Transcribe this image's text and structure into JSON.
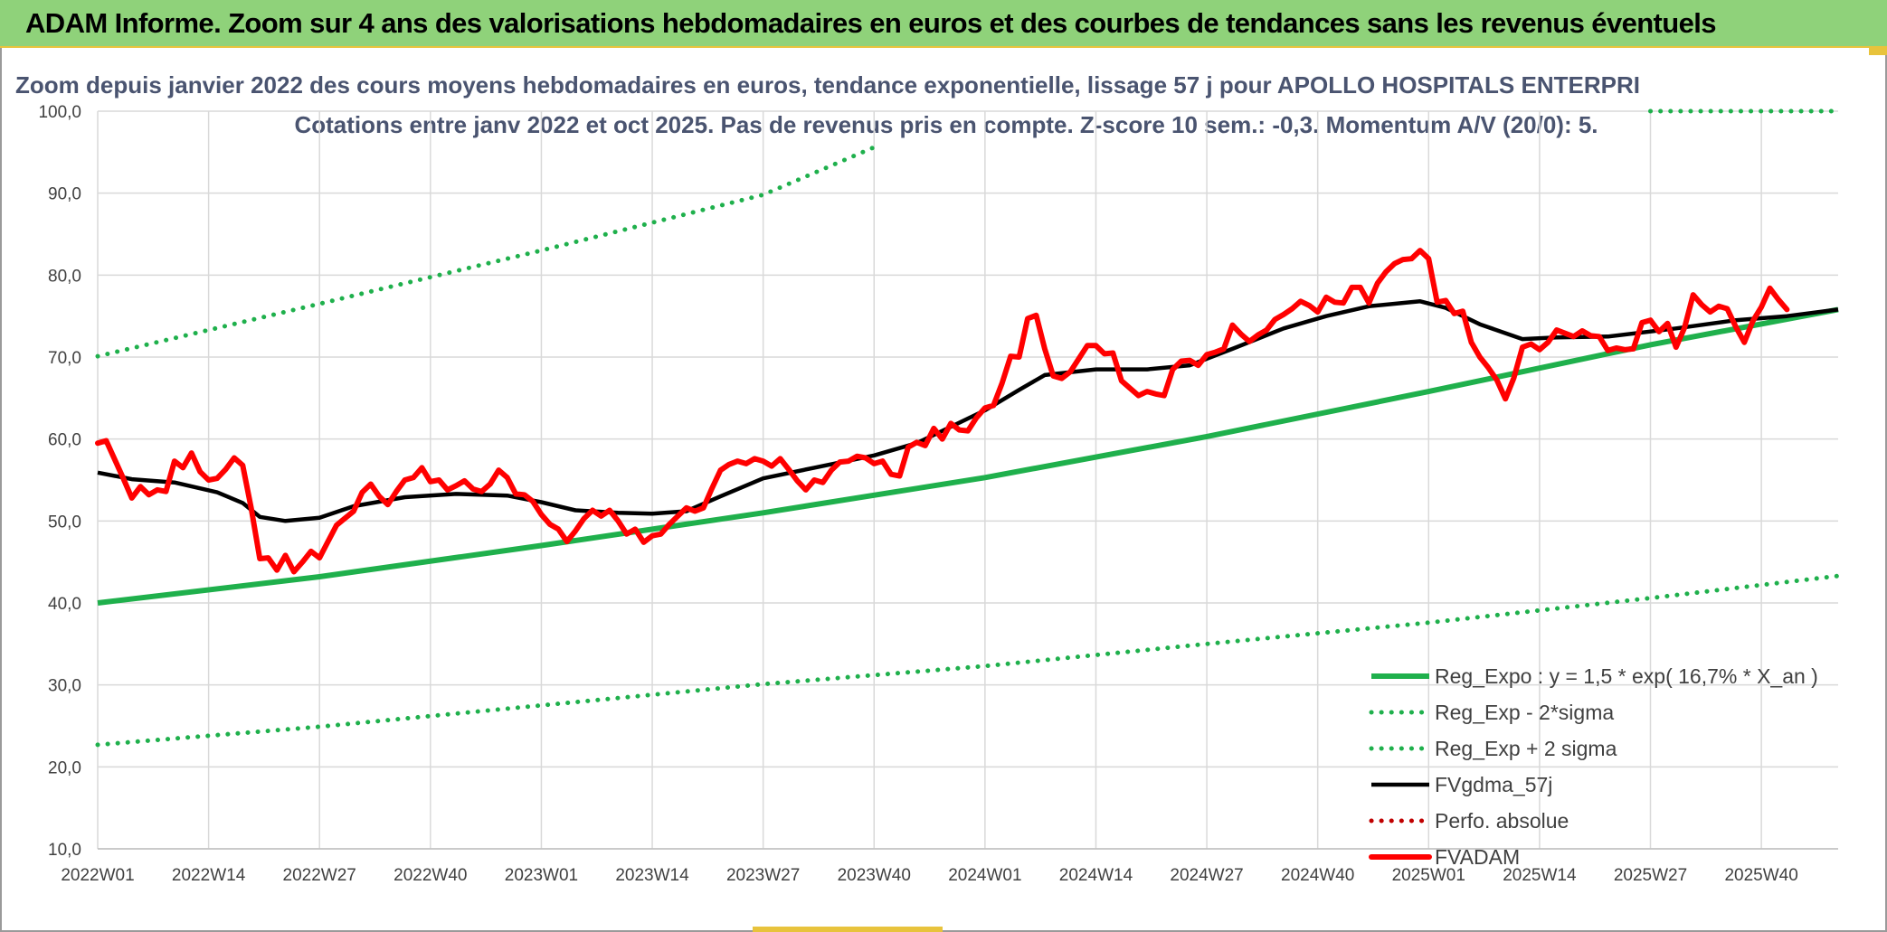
{
  "banner": {
    "title": "ADAM Informe. Zoom sur 4 ans des valorisations hebdomadaires en euros et des courbes de tendances sans les revenus éventuels"
  },
  "colors": {
    "banner_bg": "#8fd27a",
    "accent": "#e8c33c",
    "regression": "#1fb04c",
    "bands": "#1fb04c",
    "smoothed": "#000000",
    "price": "#ff0000",
    "perf": "#c00000",
    "grid": "#d9d9d9",
    "title_text": "#4a5470"
  },
  "chart_data": {
    "type": "line",
    "title": "Zoom depuis janvier 2022 des cours moyens hebdomadaires en euros, tendance exponentielle, lissage 57 j pour APOLLO HOSPITALS ENTERPRI",
    "subtitle": "Cotations entre janv 2022 et oct 2025. Pas de revenus pris en compte. Z-score 10 sem.: -0,3. Momentum A/V (20/0): 5.",
    "xlabel": "",
    "ylabel": "",
    "ylim": [
      10,
      100
    ],
    "yticks": [
      "10,0",
      "20,0",
      "30,0",
      "40,0",
      "50,0",
      "60,0",
      "70,0",
      "80,0",
      "90,0",
      "100,0"
    ],
    "x_start": "2022W01",
    "x_end": "2025W49",
    "xticks": [
      "2022W01",
      "2022W14",
      "2022W27",
      "2022W40",
      "2023W01",
      "2023W14",
      "2023W27",
      "2023W40",
      "2024W01",
      "2024W14",
      "2024W27",
      "2024W40",
      "2025W01",
      "2025W14",
      "2025W27",
      "2025W40"
    ],
    "grid": true,
    "legend_position": "right",
    "series": [
      {
        "name": "Reg_Expo : y = 1,5 * exp( 16,7% *  X_an )",
        "style": "solid",
        "color": "#1fb04c",
        "points": [
          [
            "2022W01",
            40.0
          ],
          [
            "2022W27",
            43.2
          ],
          [
            "2023W01",
            47.0
          ],
          [
            "2023W27",
            51.0
          ],
          [
            "2024W01",
            55.3
          ],
          [
            "2024W27",
            60.3
          ],
          [
            "2025W01",
            65.8
          ],
          [
            "2025W27",
            71.5
          ],
          [
            "2025W49",
            75.8
          ]
        ]
      },
      {
        "name": "Reg_Exp - 2*sigma",
        "style": "dotted",
        "color": "#1fb04c",
        "points": [
          [
            "2022W01",
            22.7
          ],
          [
            "2022W27",
            24.9
          ],
          [
            "2023W01",
            27.5
          ],
          [
            "2023W27",
            30.1
          ],
          [
            "2024W01",
            32.3
          ],
          [
            "2024W27",
            35.0
          ],
          [
            "2025W01",
            37.6
          ],
          [
            "2025W27",
            40.6
          ],
          [
            "2025W49",
            43.3
          ]
        ]
      },
      {
        "name": "Reg_Exp + 2 sigma",
        "style": "dotted",
        "color": "#1fb04c",
        "points": [
          [
            "2022W01",
            70.1
          ],
          [
            "2022W27",
            76.5
          ],
          [
            "2023W01",
            83.0
          ],
          [
            "2023W27",
            89.8
          ],
          [
            "2023W40",
            95.6
          ],
          [
            "2025W27",
            100.0
          ],
          [
            "2025W49",
            100.0
          ]
        ],
        "visible_ranges": [
          [
            "2022W01",
            "2023W40"
          ],
          [
            "2025W27",
            "2025W49"
          ]
        ]
      },
      {
        "name": "FVgdma_57j",
        "style": "solid",
        "color": "#000000",
        "points": [
          [
            "2022W01",
            55.9
          ],
          [
            "2022W05",
            55.1
          ],
          [
            "2022W10",
            54.7
          ],
          [
            "2022W15",
            53.5
          ],
          [
            "2022W18",
            52.2
          ],
          [
            "2022W20",
            50.5
          ],
          [
            "2022W23",
            50.0
          ],
          [
            "2022W27",
            50.4
          ],
          [
            "2022W31",
            51.8
          ],
          [
            "2022W37",
            52.9
          ],
          [
            "2022W43",
            53.3
          ],
          [
            "2022W49",
            53.1
          ],
          [
            "2023W01",
            52.3
          ],
          [
            "2023W05",
            51.3
          ],
          [
            "2023W10",
            51.0
          ],
          [
            "2023W14",
            50.9
          ],
          [
            "2023W18",
            51.2
          ],
          [
            "2023W22",
            53.0
          ],
          [
            "2023W27",
            55.2
          ],
          [
            "2023W33",
            56.5
          ],
          [
            "2023W40",
            58.0
          ],
          [
            "2023W45",
            59.5
          ],
          [
            "2023W49",
            61.5
          ],
          [
            "2024W01",
            63.5
          ],
          [
            "2024W05",
            66.0
          ],
          [
            "2024W08",
            67.8
          ],
          [
            "2024W14",
            68.5
          ],
          [
            "2024W20",
            68.5
          ],
          [
            "2024W25",
            69.0
          ],
          [
            "2024W30",
            71.0
          ],
          [
            "2024W36",
            73.5
          ],
          [
            "2024W41",
            75.0
          ],
          [
            "2024W46",
            76.2
          ],
          [
            "2024W52",
            76.8
          ],
          [
            "2025W03",
            76.0
          ],
          [
            "2025W07",
            74.0
          ],
          [
            "2025W12",
            72.2
          ],
          [
            "2025W16",
            72.4
          ],
          [
            "2025W22",
            72.5
          ],
          [
            "2025W30",
            73.5
          ],
          [
            "2025W37",
            74.5
          ],
          [
            "2025W43",
            75.0
          ],
          [
            "2025W49",
            75.8
          ]
        ]
      },
      {
        "name": "Perfo. absolue",
        "style": "dotted",
        "color": "#c00000",
        "points": []
      },
      {
        "name": "FVADAM",
        "style": "solid-thick",
        "color": "#ff0000",
        "points": [
          [
            "2022W01",
            59.5
          ],
          [
            "2022W02",
            59.8
          ],
          [
            "2022W04",
            55.2
          ],
          [
            "2022W05",
            52.8
          ],
          [
            "2022W06",
            54.2
          ],
          [
            "2022W07",
            53.2
          ],
          [
            "2022W08",
            53.8
          ],
          [
            "2022W09",
            53.6
          ],
          [
            "2022W10",
            57.3
          ],
          [
            "2022W11",
            56.5
          ],
          [
            "2022W12",
            58.3
          ],
          [
            "2022W13",
            56.0
          ],
          [
            "2022W14",
            55.0
          ],
          [
            "2022W15",
            55.2
          ],
          [
            "2022W16",
            56.3
          ],
          [
            "2022W17",
            57.7
          ],
          [
            "2022W18",
            56.8
          ],
          [
            "2022W19",
            51.5
          ],
          [
            "2022W20",
            45.4
          ],
          [
            "2022W21",
            45.5
          ],
          [
            "2022W22",
            44.0
          ],
          [
            "2022W23",
            45.8
          ],
          [
            "2022W24",
            43.8
          ],
          [
            "2022W25",
            45.0
          ],
          [
            "2022W26",
            46.3
          ],
          [
            "2022W27",
            45.5
          ],
          [
            "2022W28",
            47.5
          ],
          [
            "2022W29",
            49.5
          ],
          [
            "2022W31",
            51.2
          ],
          [
            "2022W32",
            53.5
          ],
          [
            "2022W33",
            54.5
          ],
          [
            "2022W34",
            53.0
          ],
          [
            "2022W35",
            52.0
          ],
          [
            "2022W36",
            53.6
          ],
          [
            "2022W37",
            55.0
          ],
          [
            "2022W38",
            55.3
          ],
          [
            "2022W39",
            56.5
          ],
          [
            "2022W40",
            54.8
          ],
          [
            "2022W41",
            55.0
          ],
          [
            "2022W42",
            53.8
          ],
          [
            "2022W43",
            54.3
          ],
          [
            "2022W44",
            54.9
          ],
          [
            "2022W45",
            53.9
          ],
          [
            "2022W46",
            53.6
          ],
          [
            "2022W47",
            54.5
          ],
          [
            "2022W48",
            56.2
          ],
          [
            "2022W49",
            55.3
          ],
          [
            "2022W50",
            53.3
          ],
          [
            "2022W51",
            53.2
          ],
          [
            "2022W52",
            52.4
          ],
          [
            "2023W01",
            50.8
          ],
          [
            "2023W02",
            49.6
          ],
          [
            "2023W03",
            49.0
          ],
          [
            "2023W04",
            47.5
          ],
          [
            "2023W05",
            48.8
          ],
          [
            "2023W06",
            50.3
          ],
          [
            "2023W07",
            51.3
          ],
          [
            "2023W08",
            50.6
          ],
          [
            "2023W09",
            51.3
          ],
          [
            "2023W10",
            50.0
          ],
          [
            "2023W11",
            48.4
          ],
          [
            "2023W12",
            49.0
          ],
          [
            "2023W13",
            47.4
          ],
          [
            "2023W14",
            48.2
          ],
          [
            "2023W15",
            48.4
          ],
          [
            "2023W16",
            49.6
          ],
          [
            "2023W17",
            50.6
          ],
          [
            "2023W18",
            51.6
          ],
          [
            "2023W19",
            51.2
          ],
          [
            "2023W20",
            51.6
          ],
          [
            "2023W21",
            54.0
          ],
          [
            "2023W22",
            56.2
          ],
          [
            "2023W23",
            56.9
          ],
          [
            "2023W24",
            57.3
          ],
          [
            "2023W25",
            57.0
          ],
          [
            "2023W26",
            57.6
          ],
          [
            "2023W27",
            57.3
          ],
          [
            "2023W28",
            56.7
          ],
          [
            "2023W29",
            57.6
          ],
          [
            "2023W30",
            56.3
          ],
          [
            "2023W31",
            54.9
          ],
          [
            "2023W32",
            53.8
          ],
          [
            "2023W33",
            55.0
          ],
          [
            "2023W34",
            54.7
          ],
          [
            "2023W35",
            56.2
          ],
          [
            "2023W36",
            57.2
          ],
          [
            "2023W37",
            57.3
          ],
          [
            "2023W38",
            57.9
          ],
          [
            "2023W39",
            57.7
          ],
          [
            "2023W40",
            57.0
          ],
          [
            "2023W41",
            57.3
          ],
          [
            "2023W42",
            55.7
          ],
          [
            "2023W43",
            55.5
          ],
          [
            "2023W44",
            59.0
          ],
          [
            "2023W45",
            59.6
          ],
          [
            "2023W46",
            59.2
          ],
          [
            "2023W47",
            61.3
          ],
          [
            "2023W48",
            60.0
          ],
          [
            "2023W49",
            61.9
          ],
          [
            "2023W50",
            61.1
          ],
          [
            "2023W51",
            61.0
          ],
          [
            "2023W52",
            62.6
          ],
          [
            "2024W01",
            63.8
          ],
          [
            "2024W02",
            64.1
          ],
          [
            "2024W03",
            66.8
          ],
          [
            "2024W04",
            70.1
          ],
          [
            "2024W05",
            70.0
          ],
          [
            "2024W06",
            74.7
          ],
          [
            "2024W07",
            75.1
          ],
          [
            "2024W08",
            71.0
          ],
          [
            "2024W09",
            67.7
          ],
          [
            "2024W10",
            67.4
          ],
          [
            "2024W11",
            68.2
          ],
          [
            "2024W12",
            69.8
          ],
          [
            "2024W13",
            71.4
          ],
          [
            "2024W14",
            71.4
          ],
          [
            "2024W15",
            70.4
          ],
          [
            "2024W16",
            70.5
          ],
          [
            "2024W17",
            67.1
          ],
          [
            "2024W18",
            66.2
          ],
          [
            "2024W19",
            65.3
          ],
          [
            "2024W20",
            65.8
          ],
          [
            "2024W21",
            65.5
          ],
          [
            "2024W22",
            65.3
          ],
          [
            "2024W23",
            68.5
          ],
          [
            "2024W24",
            69.5
          ],
          [
            "2024W25",
            69.6
          ],
          [
            "2024W26",
            69.0
          ],
          [
            "2024W27",
            70.3
          ],
          [
            "2024W28",
            70.6
          ],
          [
            "2024W29",
            71.0
          ],
          [
            "2024W30",
            73.9
          ],
          [
            "2024W31",
            72.8
          ],
          [
            "2024W32",
            71.9
          ],
          [
            "2024W33",
            72.7
          ],
          [
            "2024W34",
            73.3
          ],
          [
            "2024W35",
            74.6
          ],
          [
            "2024W36",
            75.2
          ],
          [
            "2024W37",
            75.9
          ],
          [
            "2024W38",
            76.8
          ],
          [
            "2024W39",
            76.3
          ],
          [
            "2024W40",
            75.5
          ],
          [
            "2024W41",
            77.3
          ],
          [
            "2024W42",
            76.7
          ],
          [
            "2024W43",
            76.6
          ],
          [
            "2024W44",
            78.5
          ],
          [
            "2024W45",
            78.5
          ],
          [
            "2024W46",
            76.6
          ],
          [
            "2024W47",
            79.0
          ],
          [
            "2024W48",
            80.4
          ],
          [
            "2024W49",
            81.4
          ],
          [
            "2024W50",
            81.9
          ],
          [
            "2024W51",
            82.0
          ],
          [
            "2024W52",
            83.0
          ],
          [
            "2025W01",
            82.0
          ],
          [
            "2025W02",
            76.7
          ],
          [
            "2025W03",
            76.9
          ],
          [
            "2025W04",
            75.3
          ],
          [
            "2025W05",
            75.6
          ],
          [
            "2025W06",
            71.8
          ],
          [
            "2025W07",
            70.0
          ],
          [
            "2025W08",
            68.7
          ],
          [
            "2025W09",
            67.2
          ],
          [
            "2025W10",
            64.9
          ],
          [
            "2025W11",
            67.5
          ],
          [
            "2025W12",
            71.2
          ],
          [
            "2025W13",
            71.6
          ],
          [
            "2025W14",
            70.9
          ],
          [
            "2025W15",
            71.8
          ],
          [
            "2025W16",
            73.3
          ],
          [
            "2025W17",
            72.9
          ],
          [
            "2025W18",
            72.5
          ],
          [
            "2025W19",
            73.2
          ],
          [
            "2025W20",
            72.6
          ],
          [
            "2025W21",
            72.5
          ],
          [
            "2025W22",
            70.8
          ],
          [
            "2025W23",
            71.1
          ],
          [
            "2025W24",
            70.9
          ],
          [
            "2025W25",
            71.0
          ],
          [
            "2025W26",
            74.2
          ],
          [
            "2025W27",
            74.5
          ],
          [
            "2025W28",
            73.1
          ],
          [
            "2025W29",
            74.1
          ],
          [
            "2025W30",
            71.2
          ],
          [
            "2025W31",
            73.6
          ],
          [
            "2025W32",
            77.6
          ],
          [
            "2025W33",
            76.4
          ],
          [
            "2025W34",
            75.5
          ],
          [
            "2025W35",
            76.2
          ],
          [
            "2025W36",
            75.9
          ],
          [
            "2025W37",
            73.7
          ],
          [
            "2025W38",
            71.8
          ],
          [
            "2025W39",
            74.4
          ],
          [
            "2025W40",
            76.1
          ],
          [
            "2025W41",
            78.4
          ],
          [
            "2025W42",
            77.0
          ],
          [
            "2025W43",
            75.8
          ]
        ]
      }
    ]
  }
}
